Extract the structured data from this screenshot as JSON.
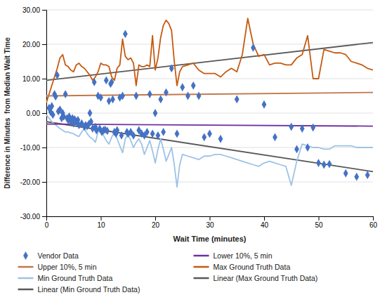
{
  "chart_data": {
    "type": "line",
    "xlabel": "Wait Time (minutes)",
    "ylabel": "Difference in Minutes  from Median Wait Time",
    "xlim": [
      0,
      60
    ],
    "ylim": [
      -30,
      30
    ],
    "xticks": [
      0,
      10,
      20,
      30,
      40,
      50,
      60
    ],
    "yticks": [
      {
        "value": -30,
        "label": "-30.00"
      },
      {
        "value": -20,
        "label": "-20.00"
      },
      {
        "value": -10,
        "label": "-10.00"
      },
      {
        "value": 0,
        "label": "0.00"
      },
      {
        "value": 10,
        "label": "10.00"
      },
      {
        "value": 20,
        "label": "20.00"
      },
      {
        "value": 30,
        "label": "30.00"
      }
    ],
    "grid": "y",
    "legend": "bottom",
    "series": [
      {
        "name": "Vendor Data",
        "type": "scatter",
        "marker": "diamond",
        "color": "#4472C4",
        "x": [
          0.5,
          0.8,
          1.0,
          1.2,
          1.5,
          1.7,
          2.0,
          2.2,
          2.5,
          2.8,
          3.0,
          3.2,
          3.5,
          3.8,
          4.0,
          4.2,
          4.5,
          4.8,
          5.0,
          5.2,
          5.5,
          5.8,
          6.0,
          6.5,
          7.0,
          7.2,
          7.5,
          7.8,
          8.0,
          8.2,
          8.5,
          8.8,
          9.0,
          9.2,
          9.5,
          9.8,
          10.0,
          10.2,
          10.5,
          10.8,
          11.0,
          11.2,
          11.5,
          11.8,
          12.0,
          12.2,
          12.5,
          12.8,
          13.0,
          13.5,
          13.8,
          14.0,
          14.5,
          14.8,
          15.0,
          15.5,
          16.0,
          16.5,
          17.0,
          17.5,
          18.0,
          18.5,
          19.0,
          19.5,
          20.0,
          20.5,
          21.0,
          21.5,
          22.0,
          23.0,
          24.0,
          25.0,
          26.0,
          27.0,
          28.0,
          29.0,
          30.0,
          32.0,
          35.0,
          38.0,
          40.0,
          42.0,
          45.0,
          46.0,
          47.0,
          48.0,
          49.0,
          50.0,
          51.0,
          52.0,
          55.0,
          57.0,
          59.0
        ],
        "values": [
          1.5,
          0.3,
          2.0,
          -0.5,
          5.5,
          4.8,
          11.0,
          0.5,
          1.0,
          -1.5,
          0.0,
          -1.0,
          5.5,
          -1.5,
          -2.0,
          -1.0,
          -2.5,
          -1.5,
          -3.0,
          -1.8,
          -2.5,
          -2.0,
          -3.5,
          -3.0,
          -4.0,
          -3.5,
          -3.8,
          -3.2,
          0.0,
          -2.5,
          -4.5,
          9.0,
          -4.0,
          -5.0,
          5.0,
          -4.5,
          4.5,
          -5.5,
          -5.0,
          -4.8,
          9.5,
          -5.2,
          3.5,
          8.5,
          9.0,
          4.0,
          -5.5,
          -6.0,
          -5.0,
          4.5,
          -6.5,
          5.0,
          23.0,
          -5.5,
          -6.0,
          -5.5,
          -6.5,
          5.0,
          -5.0,
          -6.0,
          -6.5,
          -5.5,
          5.5,
          -6.0,
          0.0,
          -6.5,
          4.0,
          -5.5,
          6.0,
          13.0,
          -6.0,
          7.5,
          5.0,
          8.0,
          5.0,
          -7.0,
          -6.0,
          -7.5,
          4.0,
          19.0,
          2.5,
          -7.0,
          -4.0,
          -10.5,
          -4.5,
          -10.0,
          -4.2,
          -14.5,
          -15.0,
          -14.8,
          -17.5,
          -18.5,
          -18.0
        ]
      },
      {
        "name": "Lower 10%, 5 min",
        "type": "line",
        "color": "#7030A0",
        "x": [
          0,
          60
        ],
        "values": [
          -3.2,
          -3.8
        ]
      },
      {
        "name": "Upper 10%, 5 min",
        "type": "line",
        "color": "#C0784C",
        "x": [
          0,
          60
        ],
        "values": [
          5.0,
          6.0
        ]
      },
      {
        "name": "Max Ground Truth Data",
        "type": "line",
        "color": "#C55A11",
        "x": [
          0.0,
          0.5,
          1.0,
          1.5,
          2.0,
          2.5,
          3.0,
          3.5,
          4.0,
          4.5,
          5.0,
          5.5,
          6.0,
          6.5,
          7.0,
          7.5,
          8.0,
          8.5,
          9.0,
          9.5,
          10.0,
          10.5,
          11.0,
          11.5,
          12.0,
          12.5,
          13.0,
          13.5,
          14.0,
          14.5,
          15.0,
          15.5,
          16.0,
          16.5,
          17.0,
          17.5,
          18.0,
          18.5,
          19.0,
          19.5,
          20.0,
          20.5,
          21.0,
          21.5,
          22.0,
          22.5,
          23.0,
          23.5,
          24.0,
          24.5,
          25.0,
          26.0,
          27.0,
          28.0,
          29.0,
          30.0,
          31.0,
          32.0,
          33.0,
          34.0,
          35.0,
          36.0,
          37.0,
          38.0,
          39.0,
          40.0,
          41.0,
          42.0,
          43.0,
          44.0,
          45.0,
          46.0,
          47.0,
          48.0,
          49.0,
          50.0,
          51.0,
          52.0,
          53.0,
          54.0,
          55.0,
          56.0,
          57.0,
          58.0,
          59.0,
          60.0
        ],
        "values": [
          3.0,
          5.5,
          8.0,
          10.5,
          13.0,
          16.0,
          17.0,
          14.0,
          13.5,
          12.5,
          12.0,
          14.0,
          14.5,
          13.5,
          13.0,
          12.0,
          11.0,
          9.5,
          10.5,
          12.0,
          14.5,
          14.0,
          14.0,
          13.5,
          10.5,
          9.5,
          13.0,
          14.0,
          21.5,
          16.5,
          15.5,
          16.0,
          14.5,
          8.0,
          14.0,
          13.5,
          13.5,
          14.0,
          13.5,
          22.5,
          12.5,
          16.0,
          22.0,
          25.5,
          27.0,
          26.0,
          24.0,
          15.0,
          8.0,
          12.0,
          13.5,
          14.0,
          14.5,
          12.5,
          11.5,
          11.5,
          11.5,
          10.5,
          12.0,
          13.0,
          12.0,
          17.0,
          27.5,
          20.0,
          16.5,
          17.0,
          14.0,
          14.5,
          14.5,
          14.0,
          14.0,
          16.0,
          17.0,
          22.5,
          10.0,
          10.0,
          18.5,
          18.0,
          17.5,
          17.5,
          17.0,
          15.0,
          14.5,
          14.0,
          13.0,
          12.5
        ]
      },
      {
        "name": "Min Ground Truth Data",
        "type": "line",
        "color": "#9DC3E6",
        "x": [
          0.0,
          0.5,
          1.0,
          1.5,
          2.0,
          2.5,
          3.0,
          3.5,
          4.0,
          4.5,
          5.0,
          5.5,
          6.0,
          6.5,
          7.0,
          7.5,
          8.0,
          8.5,
          9.0,
          9.5,
          10.0,
          10.5,
          11.0,
          11.5,
          12.0,
          12.5,
          13.0,
          13.5,
          14.0,
          14.5,
          15.0,
          15.5,
          16.0,
          16.5,
          17.0,
          17.5,
          18.0,
          18.5,
          19.0,
          19.5,
          20.0,
          20.5,
          21.0,
          21.5,
          22.0,
          22.5,
          23.0,
          23.5,
          24.0,
          24.5,
          25.0,
          26.0,
          27.0,
          28.0,
          29.0,
          30.0,
          31.0,
          32.0,
          33.0,
          34.0,
          35.0,
          36.0,
          37.0,
          38.0,
          39.0,
          40.0,
          41.0,
          42.0,
          43.0,
          44.0,
          45.0,
          46.0,
          47.0,
          48.0,
          49.0,
          50.0,
          51.0,
          52.0,
          53.0,
          54.0,
          55.0,
          56.0,
          57.0,
          58.0,
          59.0,
          60.0
        ],
        "values": [
          -0.5,
          -1.5,
          -2.5,
          -3.2,
          -3.8,
          -4.5,
          -5.0,
          -5.5,
          -5.5,
          -5.8,
          -6.0,
          -6.5,
          -6.8,
          -5.5,
          -4.5,
          -6.0,
          -7.0,
          -7.5,
          -8.5,
          -5.5,
          -4.5,
          -6.5,
          -8.0,
          -9.0,
          -7.0,
          -5.5,
          -7.5,
          -9.5,
          -11.5,
          -7.5,
          -6.0,
          -8.0,
          -10.0,
          -8.5,
          -7.5,
          -9.0,
          -12.0,
          -10.0,
          -8.0,
          -11.0,
          -14.5,
          -10.5,
          -7.5,
          -10.5,
          -14.0,
          -12.0,
          -10.0,
          -15.0,
          -21.5,
          -15.0,
          -12.0,
          -12.5,
          -13.0,
          -13.5,
          -12.5,
          -12.5,
          -12.0,
          -12.0,
          -12.5,
          -13.0,
          -13.5,
          -14.0,
          -14.5,
          -15.0,
          -15.5,
          -14.5,
          -14.0,
          -14.5,
          -15.0,
          -15.5,
          -21.0,
          -14.0,
          -9.0,
          -9.5,
          -10.0,
          -10.0,
          -10.5,
          -10.5,
          -9.5,
          -9.5,
          -9.5,
          -9.5,
          -10.0,
          -10.0,
          -10.0,
          -10.0
        ]
      },
      {
        "name": "Linear (Max Ground Truth Data)",
        "type": "line",
        "color": "#595959",
        "x": [
          0,
          60
        ],
        "values": [
          9.5,
          20.5
        ]
      },
      {
        "name": "Linear (Min Ground Truth Data)",
        "type": "line",
        "color": "#595959",
        "x": [
          0,
          60
        ],
        "values": [
          -2.5,
          -17.0
        ]
      }
    ]
  }
}
